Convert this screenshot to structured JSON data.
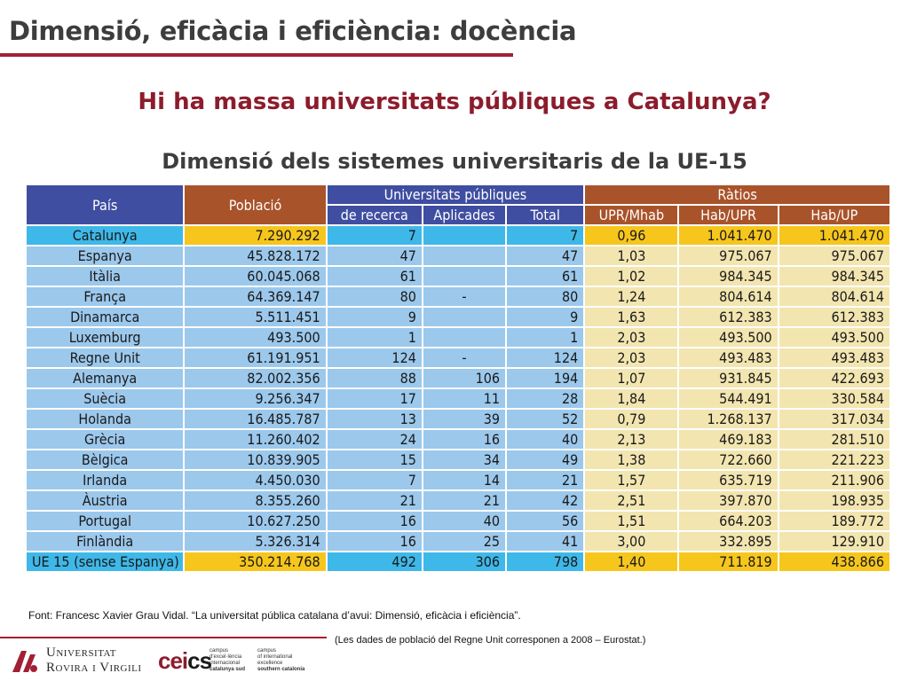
{
  "slide": {
    "title": "Dimensió, eficàcia i eficiència: docència",
    "question": "Hi ha massa universitats públiques a Catalunya?",
    "subtitle": "Dimensió dels sistemes universitaris de la UE-15"
  },
  "table": {
    "headers": {
      "pais": "País",
      "poblacio": "Població",
      "public_group": "Universitats públiques",
      "ratios_group": "Ràtios",
      "recerca": "de recerca",
      "aplicades": "Aplicades",
      "total": "Total",
      "upr_mhab": "UPR/Mhab",
      "hab_upr": "Hab/UPR",
      "hab_up": "Hab/UP"
    },
    "rows": [
      {
        "pais": "Catalunya",
        "poblacio": "7.290.292",
        "recerca": "7",
        "aplicades": "",
        "total": "7",
        "upr_mhab": "0,96",
        "hab_upr": "1.041.470",
        "hab_up": "1.041.470"
      },
      {
        "pais": "Espanya",
        "poblacio": "45.828.172",
        "recerca": "47",
        "aplicades": "",
        "total": "47",
        "upr_mhab": "1,03",
        "hab_upr": "975.067",
        "hab_up": "975.067"
      },
      {
        "pais": "Itàlia",
        "poblacio": "60.045.068",
        "recerca": "61",
        "aplicades": "",
        "total": "61",
        "upr_mhab": "1,02",
        "hab_upr": "984.345",
        "hab_up": "984.345"
      },
      {
        "pais": "França",
        "poblacio": "64.369.147",
        "recerca": "80",
        "aplicades": "-",
        "total": "80",
        "upr_mhab": "1,24",
        "hab_upr": "804.614",
        "hab_up": "804.614"
      },
      {
        "pais": "Dinamarca",
        "poblacio": "5.511.451",
        "recerca": "9",
        "aplicades": "",
        "total": "9",
        "upr_mhab": "1,63",
        "hab_upr": "612.383",
        "hab_up": "612.383"
      },
      {
        "pais": "Luxemburg",
        "poblacio": "493.500",
        "recerca": "1",
        "aplicades": "",
        "total": "1",
        "upr_mhab": "2,03",
        "hab_upr": "493.500",
        "hab_up": "493.500"
      },
      {
        "pais": "Regne Unit",
        "poblacio": "61.191.951",
        "recerca": "124",
        "aplicades": "-",
        "total": "124",
        "upr_mhab": "2,03",
        "hab_upr": "493.483",
        "hab_up": "493.483"
      },
      {
        "pais": "Alemanya",
        "poblacio": "82.002.356",
        "recerca": "88",
        "aplicades": "106",
        "total": "194",
        "upr_mhab": "1,07",
        "hab_upr": "931.845",
        "hab_up": "422.693"
      },
      {
        "pais": "Suècia",
        "poblacio": "9.256.347",
        "recerca": "17",
        "aplicades": "11",
        "total": "28",
        "upr_mhab": "1,84",
        "hab_upr": "544.491",
        "hab_up": "330.584"
      },
      {
        "pais": "Holanda",
        "poblacio": "16.485.787",
        "recerca": "13",
        "aplicades": "39",
        "total": "52",
        "upr_mhab": "0,79",
        "hab_upr": "1.268.137",
        "hab_up": "317.034"
      },
      {
        "pais": "Grècia",
        "poblacio": "11.260.402",
        "recerca": "24",
        "aplicades": "16",
        "total": "40",
        "upr_mhab": "2,13",
        "hab_upr": "469.183",
        "hab_up": "281.510"
      },
      {
        "pais": "Bèlgica",
        "poblacio": "10.839.905",
        "recerca": "15",
        "aplicades": "34",
        "total": "49",
        "upr_mhab": "1,38",
        "hab_upr": "722.660",
        "hab_up": "221.223"
      },
      {
        "pais": "Irlanda",
        "poblacio": "4.450.030",
        "recerca": "7",
        "aplicades": "14",
        "total": "21",
        "upr_mhab": "1,57",
        "hab_upr": "635.719",
        "hab_up": "211.906"
      },
      {
        "pais": "Àustria",
        "poblacio": "8.355.260",
        "recerca": "21",
        "aplicades": "21",
        "total": "42",
        "upr_mhab": "2,51",
        "hab_upr": "397.870",
        "hab_up": "198.935"
      },
      {
        "pais": "Portugal",
        "poblacio": "10.627.250",
        "recerca": "16",
        "aplicades": "40",
        "total": "56",
        "upr_mhab": "1,51",
        "hab_upr": "664.203",
        "hab_up": "189.772"
      },
      {
        "pais": "Finlàndia",
        "poblacio": "5.326.314",
        "recerca": "16",
        "aplicades": "25",
        "total": "41",
        "upr_mhab": "3,00",
        "hab_upr": "332.895",
        "hab_up": "129.910"
      }
    ],
    "total_row": {
      "pais": "UE 15 (sense Espanya)",
      "poblacio": "350.214.768",
      "recerca": "492",
      "aplicades": "306",
      "total": "798",
      "upr_mhab": "1,40",
      "hab_upr": "711.819",
      "hab_up": "438.866"
    }
  },
  "source": "Font: Francesc Xavier Grau Vidal. “La universitat pública catalana d’avui: Dimensió, eficàcia i eficiència”.",
  "note": "(Les dades de població del Regne Unit corresponen a 2008 – Eurostat.)",
  "footer": {
    "urv_line1": "Universitat",
    "urv_line2": "Rovira i Virgili",
    "cei_logo": "cei",
    "cei_logo_suffix": "cs",
    "cei_text_left_1": "campus",
    "cei_text_left_2": "d'excel·lència",
    "cei_text_left_3": "internacional",
    "cei_text_left_4": "catalunya sud",
    "cei_text_right_1": "campus",
    "cei_text_right_2": "of international",
    "cei_text_right_3": "excellence",
    "cei_text_right_4": "southern catalonia",
    "logo_icon": "urv-logo-icon",
    "brand_color": "#a31f34"
  }
}
